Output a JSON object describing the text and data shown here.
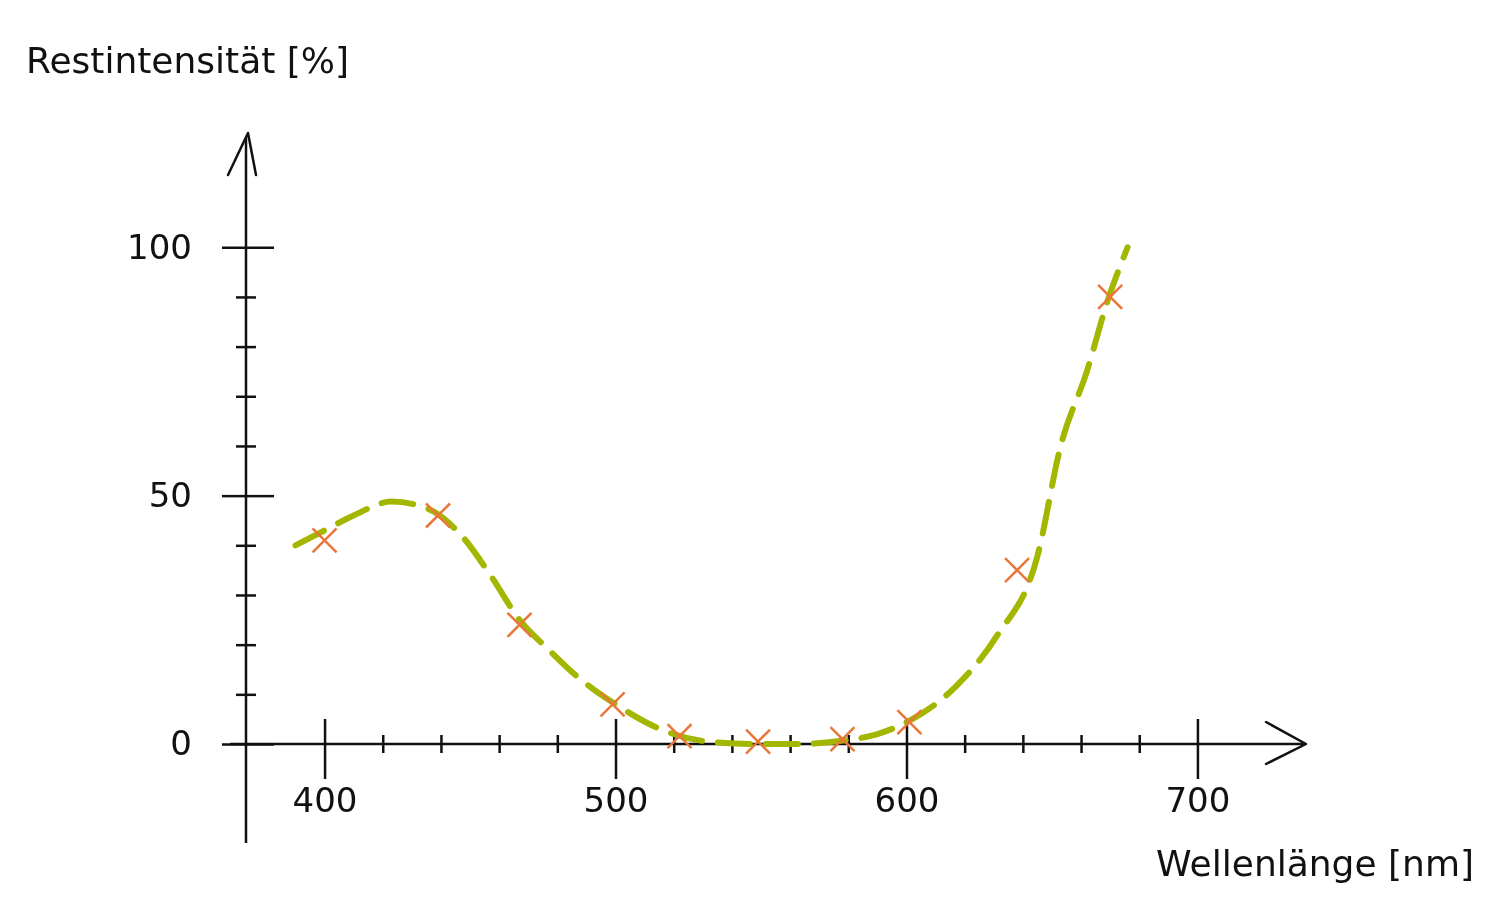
{
  "chart_data": {
    "type": "line",
    "xlabel": "Wellenlänge [nm]",
    "ylabel": "Restintensität [%]",
    "xlim": [
      373,
      738
    ],
    "ylim": [
      0,
      123
    ],
    "xticks": [
      400,
      {
        "value": 420,
        "label": null
      },
      {
        "value": 440,
        "label": null
      },
      {
        "value": 460,
        "label": null
      },
      {
        "value": 480,
        "label": null
      },
      500,
      {
        "value": 520,
        "label": null
      },
      {
        "value": 540,
        "label": null
      },
      {
        "value": 560,
        "label": null
      },
      {
        "value": 580,
        "label": null
      },
      600,
      {
        "value": 620,
        "label": null
      },
      {
        "value": 640,
        "label": null
      },
      {
        "value": 660,
        "label": null
      },
      {
        "value": 680,
        "label": null
      },
      700
    ],
    "yticks": [
      0,
      {
        "value": 10,
        "label": null
      },
      {
        "value": 20,
        "label": null
      },
      {
        "value": 30,
        "label": null
      },
      {
        "value": 40,
        "label": null
      },
      50,
      {
        "value": 60,
        "label": null
      },
      {
        "value": 70,
        "label": null
      },
      {
        "value": 80,
        "label": null
      },
      {
        "value": 90,
        "label": null
      },
      100
    ],
    "grid": false,
    "series": [
      {
        "color": "#a3b600",
        "line_style": "dashed",
        "marker": "none",
        "x": [
          390,
          400,
          410,
          423,
          435,
          447,
          457,
          467,
          477,
          486,
          500,
          517,
          533,
          548,
          563,
          577,
          590,
          602,
          617,
          631,
          645,
          653,
          662,
          669,
          676
        ],
        "values": [
          40,
          43,
          46,
          48.8,
          47.5,
          42,
          34,
          25,
          19,
          14,
          8,
          2.6,
          0.4,
          0,
          0,
          0.6,
          2,
          5,
          11.6,
          21.7,
          37.8,
          60,
          75,
          89,
          100
        ]
      },
      {
        "type": "scatter",
        "color": "#e8773a",
        "marker": "cross",
        "x": [
          400,
          439,
          467,
          499,
          522,
          549,
          578,
          601,
          638,
          670
        ],
        "values": [
          41,
          46,
          24,
          8,
          1.6,
          0.5,
          1,
          4.4,
          35,
          90
        ]
      }
    ]
  }
}
